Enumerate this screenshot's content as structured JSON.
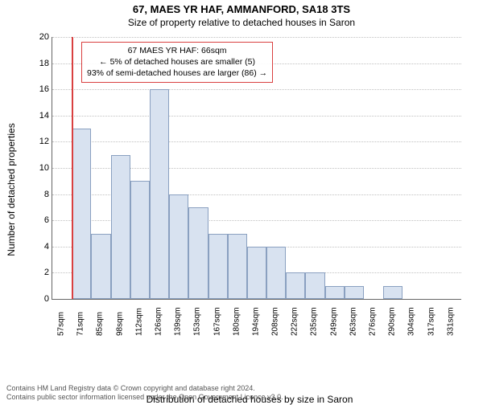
{
  "title_main": "67, MAES YR HAF, AMMANFORD, SA18 3TS",
  "title_sub": "Size of property relative to detached houses in Saron",
  "y_axis_label": "Number of detached properties",
  "x_axis_label": "Distribution of detached houses by size in Saron",
  "chart": {
    "type": "histogram",
    "y_max": 20,
    "y_tick_step": 2,
    "bar_fill": "#d8e2f0",
    "bar_stroke": "#8aa0c0",
    "grid_color": "#c0c0c0",
    "axis_color": "#666666",
    "marker_color": "#d94040",
    "marker_x_index": 1,
    "x_labels": [
      "57sqm",
      "71sqm",
      "85sqm",
      "98sqm",
      "112sqm",
      "126sqm",
      "139sqm",
      "153sqm",
      "167sqm",
      "180sqm",
      "194sqm",
      "208sqm",
      "222sqm",
      "235sqm",
      "249sqm",
      "263sqm",
      "276sqm",
      "290sqm",
      "304sqm",
      "317sqm",
      "331sqm"
    ],
    "values": [
      0,
      13,
      5,
      11,
      9,
      16,
      8,
      7,
      5,
      5,
      4,
      4,
      2,
      2,
      1,
      1,
      0,
      1,
      0,
      0,
      0
    ]
  },
  "annotation": {
    "line1": "67 MAES YR HAF: 66sqm",
    "line2": "← 5% of detached houses are smaller (5)",
    "line3": "93% of semi-detached houses are larger (86) →"
  },
  "footer": {
    "line1": "Contains HM Land Registry data © Crown copyright and database right 2024.",
    "line2": "Contains public sector information licensed under the Open Government Licence v3.0."
  }
}
